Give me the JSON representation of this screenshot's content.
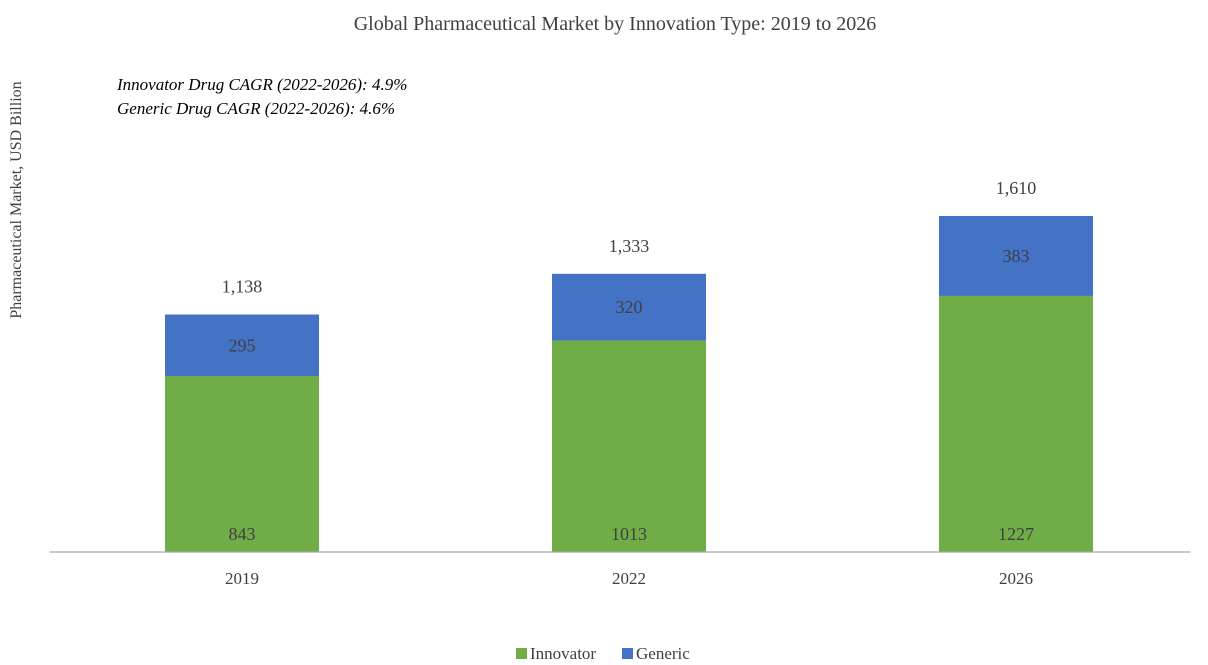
{
  "chart_data": {
    "type": "bar",
    "stacked": true,
    "title": "Global Pharmaceutical Market by Innovation Type: 2019 to 2026",
    "ylabel": "Pharmaceutical Market, USD Billion",
    "xlabel": "",
    "annotations": [
      "Innovator Drug CAGR (2022-2026): 4.9%",
      "Generic Drug CAGR (2022-2026): 4.6%"
    ],
    "categories": [
      "2019",
      "2022",
      "2026"
    ],
    "series": [
      {
        "name": "Innovator",
        "values": [
          843,
          1013,
          1227
        ],
        "color": "#70AD47"
      },
      {
        "name": "Generic",
        "values": [
          295,
          320,
          383
        ],
        "color": "#4472C4"
      }
    ],
    "totals": [
      "1,138",
      "1,333",
      "1,610"
    ],
    "ylim": [
      0,
      1800
    ],
    "grid": false,
    "legend": "bottom"
  }
}
